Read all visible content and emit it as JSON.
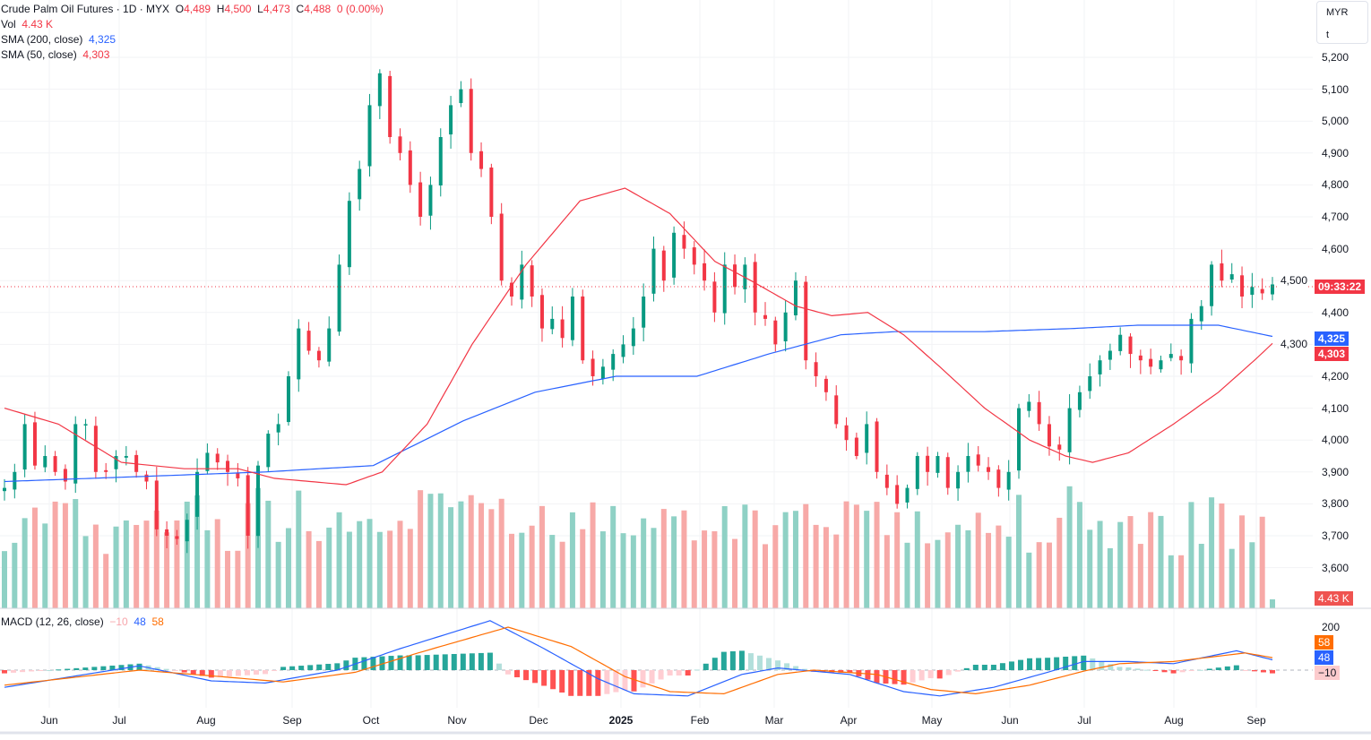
{
  "header": {
    "symbol": "Crude Palm Oil Futures · 1D · MYX",
    "o_label": "O",
    "o": "4,489",
    "h_label": "H",
    "h": "4,500",
    "l_label": "L",
    "l": "4,473",
    "c_label": "C",
    "c": "4,488",
    "change": "0 (0.00%)"
  },
  "volume_legend": {
    "label": "Vol",
    "value": "4.43 K"
  },
  "sma200_legend": {
    "label": "SMA (200, close)",
    "value": "4,325"
  },
  "sma50_legend": {
    "label": "SMA (50, close)",
    "value": "4,303"
  },
  "macd_legend": {
    "label": "MACD (12, 26, close)",
    "hist": "−10",
    "macd": "48",
    "signal": "58"
  },
  "unit": {
    "currency": "MYR",
    "unit": "t"
  },
  "price_tags": {
    "countdown": "09:33:22",
    "sma200": "4,325",
    "sma50": "4,303",
    "volume": "4.43 K",
    "macd_signal": "58",
    "macd": "48",
    "macd_hist": "−10",
    "macd_axis": "200"
  },
  "colors": {
    "up": "#089981",
    "down": "#f23645",
    "sma200": "#2962ff",
    "sma50": "#f23645",
    "signal": "#ff6d00"
  },
  "chart_data": {
    "type": "candlestick",
    "title": "Crude Palm Oil Futures · 1D · MYX",
    "price_ticks": [
      "5,200",
      "5,100",
      "5,000",
      "4,900",
      "4,800",
      "4,700",
      "4,600",
      "4,500",
      "4,400",
      "4,300",
      "4,200",
      "4,100",
      "4,000",
      "3,900",
      "3,800",
      "3,700",
      "3,600"
    ],
    "ylim": [
      3600,
      5200
    ],
    "time_ticks": [
      "Jun",
      "Jul",
      "Aug",
      "Sep",
      "Oct",
      "Nov",
      "Dec",
      "2025",
      "Feb",
      "Mar",
      "Apr",
      "May",
      "Jun",
      "Jul",
      "Aug",
      "Sep"
    ],
    "closes": [
      3850,
      3900,
      4050,
      3920,
      3950,
      3900,
      3870,
      4050,
      4050,
      3900,
      3900,
      3950,
      3950,
      3900,
      3870,
      3720,
      3700,
      3690,
      3750,
      3900,
      3960,
      3930,
      3900,
      3880,
      3700,
      3920,
      4020,
      4050,
      4200,
      4350,
      4280,
      4250,
      4350,
      4550,
      4750,
      4850,
      5050,
      5150,
      4950,
      4900,
      4800,
      4700,
      4800,
      4950,
      5050,
      5100,
      4900,
      4850,
      4700,
      4500,
      4450,
      4550,
      4450,
      4350,
      4380,
      4320,
      4450,
      4250,
      4200,
      4230,
      4270,
      4300,
      4350,
      4450,
      4600,
      4500,
      4650,
      4600,
      4550,
      4500,
      4400,
      4550,
      4480,
      4550,
      4400,
      4380,
      4300,
      4400,
      4500,
      4250,
      4200,
      4150,
      4050,
      4000,
      3950,
      4050,
      3900,
      3850,
      3800,
      3850,
      3950,
      3900,
      3950,
      3850,
      3900,
      3950,
      3920,
      3900,
      3850,
      3900,
      4100,
      4120,
      4050,
      3980,
      3970,
      4100,
      4150,
      4200,
      4250,
      4280,
      4330,
      4270,
      4250,
      4230,
      4250,
      4270,
      4250,
      4380,
      4420,
      4550,
      4500,
      4520,
      4450,
      4480,
      4460,
      4488
    ],
    "sma200": [
      [
        0,
        3870
      ],
      [
        29,
        3900
      ],
      [
        41,
        3920
      ],
      [
        51,
        4060
      ],
      [
        59,
        4150
      ],
      [
        68,
        4200
      ],
      [
        77,
        4200
      ],
      [
        85,
        4270
      ],
      [
        93,
        4330
      ],
      [
        99,
        4340
      ],
      [
        109,
        4340
      ],
      [
        119,
        4350
      ],
      [
        126,
        4360
      ],
      [
        135,
        4360
      ],
      [
        141,
        4325
      ]
    ],
    "sma50": [
      [
        0,
        4100
      ],
      [
        6,
        4050
      ],
      [
        13,
        3930
      ],
      [
        20,
        3910
      ],
      [
        26,
        3910
      ],
      [
        30,
        3880
      ],
      [
        38,
        3860
      ],
      [
        42,
        3900
      ],
      [
        47,
        4050
      ],
      [
        52,
        4300
      ],
      [
        58,
        4550
      ],
      [
        64,
        4750
      ],
      [
        69,
        4790
      ],
      [
        74,
        4710
      ],
      [
        79,
        4560
      ],
      [
        83,
        4500
      ],
      [
        88,
        4420
      ],
      [
        92,
        4390
      ],
      [
        96,
        4400
      ],
      [
        100,
        4330
      ],
      [
        104,
        4230
      ],
      [
        109,
        4100
      ],
      [
        114,
        4000
      ],
      [
        118,
        3950
      ],
      [
        121,
        3930
      ],
      [
        125,
        3960
      ],
      [
        130,
        4050
      ],
      [
        135,
        4150
      ],
      [
        139,
        4250
      ],
      [
        141,
        4303
      ]
    ],
    "macd_line": [
      [
        0,
        -80
      ],
      [
        15,
        20
      ],
      [
        23,
        -50
      ],
      [
        29,
        -60
      ],
      [
        37,
        0
      ],
      [
        44,
        100
      ],
      [
        54,
        230
      ],
      [
        60,
        100
      ],
      [
        66,
        -40
      ],
      [
        70,
        -110
      ],
      [
        76,
        -120
      ],
      [
        82,
        -20
      ],
      [
        86,
        10
      ],
      [
        94,
        -20
      ],
      [
        100,
        -100
      ],
      [
        104,
        -120
      ],
      [
        110,
        -80
      ],
      [
        116,
        -10
      ],
      [
        120,
        40
      ],
      [
        125,
        40
      ],
      [
        130,
        30
      ],
      [
        137,
        90
      ],
      [
        141,
        48
      ]
    ],
    "signal_line": [
      [
        0,
        -70
      ],
      [
        15,
        0
      ],
      [
        24,
        -30
      ],
      [
        31,
        -55
      ],
      [
        39,
        -10
      ],
      [
        46,
        80
      ],
      [
        56,
        200
      ],
      [
        63,
        110
      ],
      [
        69,
        -30
      ],
      [
        74,
        -100
      ],
      [
        80,
        -110
      ],
      [
        86,
        -20
      ],
      [
        90,
        0
      ],
      [
        97,
        -20
      ],
      [
        103,
        -90
      ],
      [
        108,
        -110
      ],
      [
        114,
        -70
      ],
      [
        120,
        -5
      ],
      [
        124,
        30
      ],
      [
        130,
        40
      ],
      [
        138,
        80
      ],
      [
        141,
        58
      ]
    ],
    "macd_ylim": [
      -200,
      250
    ]
  }
}
